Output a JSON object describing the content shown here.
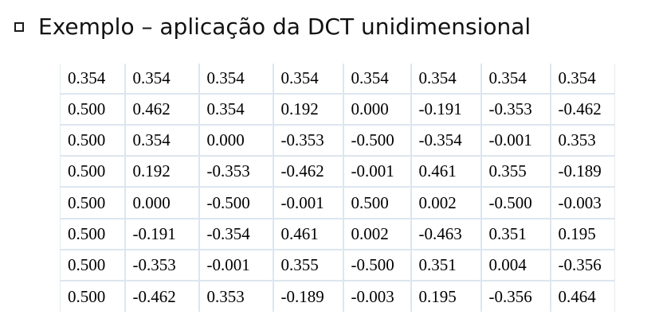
{
  "title": {
    "bullet_icon": "hollow-square-bullet-icon",
    "text": "Exemplo – aplicação da DCT unidimensional"
  },
  "matrix": {
    "rows": [
      [
        "0.354",
        "0.354",
        "0.354",
        "0.354",
        "0.354",
        "0.354",
        "0.354",
        "0.354"
      ],
      [
        "0.500",
        "0.462",
        "0.354",
        "0.192",
        "0.000",
        "-0.191",
        "-0.353",
        "-0.462"
      ],
      [
        "0.500",
        "0.354",
        "0.000",
        "-0.353",
        "-0.500",
        "-0.354",
        "-0.001",
        "0.353"
      ],
      [
        "0.500",
        "0.192",
        "-0.353",
        "-0.462",
        "-0.001",
        "0.461",
        "0.355",
        "-0.189"
      ],
      [
        "0.500",
        "0.000",
        "-0.500",
        "-0.001",
        "0.500",
        "0.002",
        "-0.500",
        "-0.003"
      ],
      [
        "0.500",
        "-0.191",
        "-0.354",
        "0.461",
        "0.002",
        "-0.463",
        "0.351",
        "0.195"
      ],
      [
        "0.500",
        "-0.353",
        "-0.001",
        "0.355",
        "-0.500",
        "0.351",
        "0.004",
        "-0.356"
      ],
      [
        "0.500",
        "-0.462",
        "0.353",
        "-0.189",
        "-0.003",
        "0.195",
        "-0.356",
        "0.464"
      ]
    ]
  }
}
